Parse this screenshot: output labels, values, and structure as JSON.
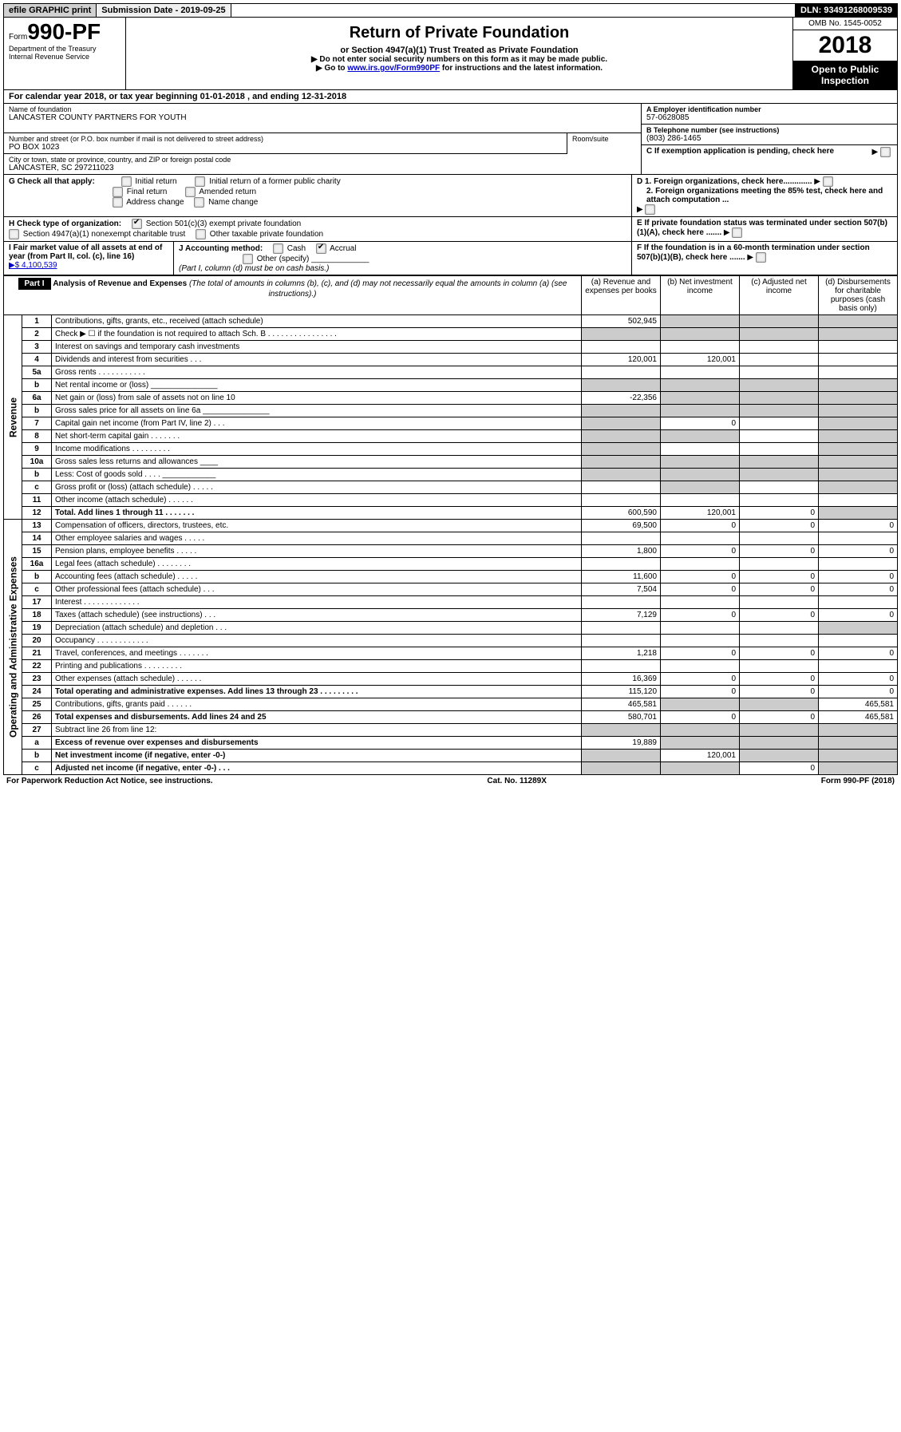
{
  "topbar": {
    "efile": "efile GRAPHIC print",
    "submission": "Submission Date - 2019-09-25",
    "dln": "DLN: 93491268009539"
  },
  "header": {
    "form_prefix": "Form",
    "form_num": "990-PF",
    "dept1": "Department of the Treasury",
    "dept2": "Internal Revenue Service",
    "title": "Return of Private Foundation",
    "subtitle": "or Section 4947(a)(1) Trust Treated as Private Foundation",
    "note1": "▶ Do not enter social security numbers on this form as it may be made public.",
    "note2_pre": "▶ Go to ",
    "note2_link": "www.irs.gov/Form990PF",
    "note2_post": " for instructions and the latest information.",
    "omb": "OMB No. 1545-0052",
    "year": "2018",
    "inspect": "Open to Public Inspection"
  },
  "calyear": {
    "pre": "For calendar year 2018, or tax year beginning ",
    "begin": "01-01-2018",
    "mid": " , and ending ",
    "end": "12-31-2018"
  },
  "name": {
    "label": "Name of foundation",
    "val": "LANCASTER COUNTY PARTNERS FOR YOUTH"
  },
  "ein": {
    "label": "A Employer identification number",
    "val": "57-0628085"
  },
  "addr": {
    "label": "Number and street (or P.O. box number if mail is not delivered to street address)",
    "room": "Room/suite",
    "val": "PO BOX 1023"
  },
  "tel": {
    "label": "B Telephone number (see instructions)",
    "val": "(803) 286-1465"
  },
  "city": {
    "label": "City or town, state or province, country, and ZIP or foreign postal code",
    "val": "LANCASTER, SC  297211023"
  },
  "c_label": "C If exemption application is pending, check here",
  "g": {
    "label": "G Check all that apply:",
    "opts": [
      "Initial return",
      "Initial return of a former public charity",
      "Final return",
      "Amended return",
      "Address change",
      "Name change"
    ]
  },
  "h": {
    "label": "H Check type of organization:",
    "opt1": "Section 501(c)(3) exempt private foundation",
    "opt2": "Section 4947(a)(1) nonexempt charitable trust",
    "opt3": "Other taxable private foundation"
  },
  "d": {
    "d1": "D 1. Foreign organizations, check here.............",
    "d2": "2. Foreign organizations meeting the 85% test, check here and attach computation ..."
  },
  "e_label": "E If private foundation status was terminated under section 507(b)(1)(A), check here .......",
  "i": {
    "label": "I Fair market value of all assets at end of year (from Part II, col. (c), line 16)",
    "val": "▶$  4,100,539"
  },
  "j": {
    "label": "J Accounting method:",
    "cash": "Cash",
    "accrual": "Accrual",
    "other": "Other (specify)",
    "note": "(Part I, column (d) must be on cash basis.)"
  },
  "f_label": "F If the foundation is in a 60-month termination under section 507(b)(1)(B), check here .......",
  "part1": {
    "tag": "Part I",
    "title": "Analysis of Revenue and Expenses",
    "note": "(The total of amounts in columns (b), (c), and (d) may not necessarily equal the amounts in column (a) (see instructions).)",
    "cols": {
      "a": "(a) Revenue and expenses per books",
      "b": "(b) Net investment income",
      "c": "(c) Adjusted net income",
      "d": "(d) Disbursements for charitable purposes (cash basis only)"
    }
  },
  "revenue_label": "Revenue",
  "expenses_label": "Operating and Administrative Expenses",
  "lines": {
    "l1": {
      "n": "1",
      "d": "Contributions, gifts, grants, etc., received (attach schedule)",
      "a": "502,945"
    },
    "l2": {
      "n": "2",
      "d": "Check ▶ ☐ if the foundation is not required to attach Sch. B  .  .  .  .  .  .  .  .  .  .  .  .  .  .  .  ."
    },
    "l3": {
      "n": "3",
      "d": "Interest on savings and temporary cash investments"
    },
    "l4": {
      "n": "4",
      "d": "Dividends and interest from securities   .   .   .",
      "a": "120,001",
      "b": "120,001"
    },
    "l5a": {
      "n": "5a",
      "d": "Gross rents   .   .   .   .   .   .   .   .   .   .   ."
    },
    "l5b": {
      "n": "b",
      "d": "Net rental income or (loss)  _______________"
    },
    "l6a": {
      "n": "6a",
      "d": "Net gain or (loss) from sale of assets not on line 10",
      "a": "-22,356"
    },
    "l6b": {
      "n": "b",
      "d": "Gross sales price for all assets on line 6a _______________"
    },
    "l7": {
      "n": "7",
      "d": "Capital gain net income (from Part IV, line 2)   .   .   .",
      "b": "0"
    },
    "l8": {
      "n": "8",
      "d": "Net short-term capital gain    .   .   .   .   .   .   ."
    },
    "l9": {
      "n": "9",
      "d": "Income modifications   .   .   .   .   .   .   .   .   ."
    },
    "l10a": {
      "n": "10a",
      "d": "Gross sales less returns and allowances  ____"
    },
    "l10b": {
      "n": "b",
      "d": "Less: Cost of goods sold     .   .   .   .  ____________"
    },
    "l10c": {
      "n": "c",
      "d": "Gross profit or (loss) (attach schedule)   .   .   .   .   ."
    },
    "l11": {
      "n": "11",
      "d": "Other income (attach schedule)   .   .   .   .   .   ."
    },
    "l12": {
      "n": "12",
      "d": "Total. Add lines 1 through 11    .   .   .   .   .   .   .",
      "a": "600,590",
      "b": "120,001",
      "c": "0"
    },
    "l13": {
      "n": "13",
      "d": "Compensation of officers, directors, trustees, etc.",
      "a": "69,500",
      "b": "0",
      "c": "0",
      "dd": "0"
    },
    "l14": {
      "n": "14",
      "d": "Other employee salaries and wages    .   .   .   .   ."
    },
    "l15": {
      "n": "15",
      "d": "Pension plans, employee benefits    .   .   .   .   .",
      "a": "1,800",
      "b": "0",
      "c": "0",
      "dd": "0"
    },
    "l16a": {
      "n": "16a",
      "d": "Legal fees (attach schedule)  .   .   .   .   .   .   .   ."
    },
    "l16b": {
      "n": "b",
      "d": "Accounting fees (attach schedule)    .   .   .   .   .",
      "a": "11,600",
      "b": "0",
      "c": "0",
      "dd": "0"
    },
    "l16c": {
      "n": "c",
      "d": "Other professional fees (attach schedule)    .   .   .",
      "a": "7,504",
      "b": "0",
      "c": "0",
      "dd": "0"
    },
    "l17": {
      "n": "17",
      "d": "Interest   .   .   .   .   .   .   .   .   .   .   .   .   ."
    },
    "l18": {
      "n": "18",
      "d": "Taxes (attach schedule) (see instructions)    .   .   .",
      "a": "7,129",
      "b": "0",
      "c": "0",
      "dd": "0"
    },
    "l19": {
      "n": "19",
      "d": "Depreciation (attach schedule) and depletion    .   .   ."
    },
    "l20": {
      "n": "20",
      "d": "Occupancy   .   .   .   .   .   .   .   .   .   .   .   ."
    },
    "l21": {
      "n": "21",
      "d": "Travel, conferences, and meetings  .   .   .   .   .   .   .",
      "a": "1,218",
      "b": "0",
      "c": "0",
      "dd": "0"
    },
    "l22": {
      "n": "22",
      "d": "Printing and publications  .   .   .   .   .   .   .   .   ."
    },
    "l23": {
      "n": "23",
      "d": "Other expenses (attach schedule)   .   .   .   .   .   .",
      "a": "16,369",
      "b": "0",
      "c": "0",
      "dd": "0"
    },
    "l24": {
      "n": "24",
      "d": "Total operating and administrative expenses. Add lines 13 through 23    .   .   .   .   .   .   .   .   .",
      "a": "115,120",
      "b": "0",
      "c": "0",
      "dd": "0"
    },
    "l25": {
      "n": "25",
      "d": "Contributions, gifts, grants paid     .   .   .   .   .   .",
      "a": "465,581",
      "dd": "465,581"
    },
    "l26": {
      "n": "26",
      "d": "Total expenses and disbursements. Add lines 24 and 25",
      "a": "580,701",
      "b": "0",
      "c": "0",
      "dd": "465,581"
    },
    "l27": {
      "n": "27",
      "d": "Subtract line 26 from line 12:"
    },
    "l27a": {
      "n": "a",
      "d": "Excess of revenue over expenses and disbursements",
      "a": "19,889"
    },
    "l27b": {
      "n": "b",
      "d": "Net investment income (if negative, enter -0-)",
      "b": "120,001"
    },
    "l27c": {
      "n": "c",
      "d": "Adjusted net income (if negative, enter -0-)   .   .   .",
      "c": "0"
    }
  },
  "footer": {
    "left": "For Paperwork Reduction Act Notice, see instructions.",
    "mid": "Cat. No. 11289X",
    "right": "Form 990-PF (2018)"
  }
}
